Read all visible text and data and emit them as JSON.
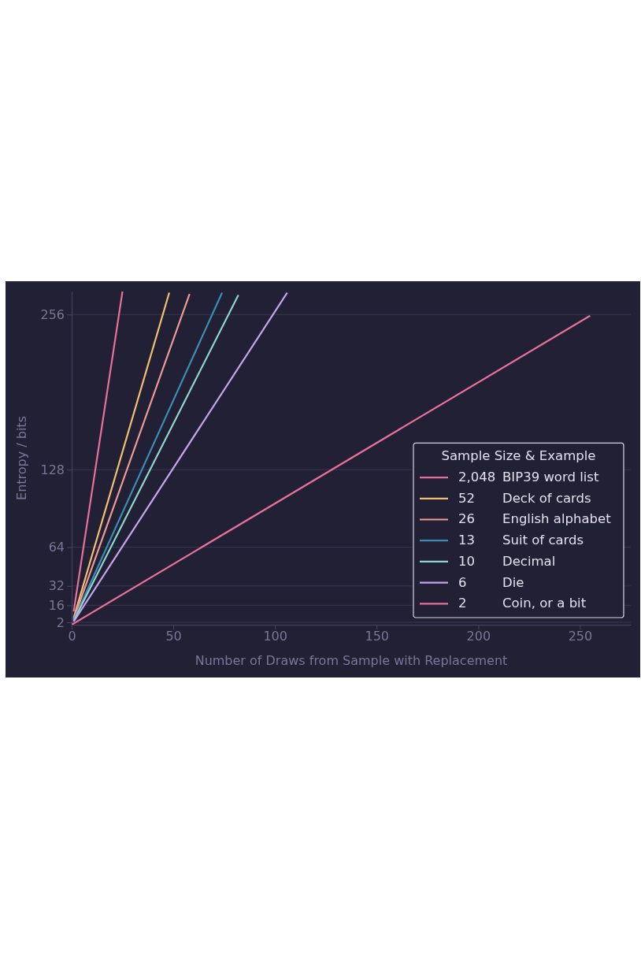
{
  "chart_data": {
    "type": "line",
    "xlabel": "Number of Draws from Sample with Replacement",
    "ylabel": "Entropy / bits",
    "legend_title": "Sample Size & Example",
    "xlim": [
      0,
      275
    ],
    "ylim": [
      0,
      275
    ],
    "xticks": [
      0,
      50,
      100,
      150,
      200,
      250
    ],
    "yticks": [
      2,
      16,
      32,
      64,
      128,
      256
    ],
    "grid": "y",
    "legend": "bottom right",
    "line_style": "solid",
    "marker": "none",
    "series": [
      {
        "name": "2,048 BIP39 word list",
        "color": "#e8719c",
        "x": [
          1,
          25
        ],
        "values": [
          11,
          275
        ]
      },
      {
        "name": "52 Deck of cards",
        "color": "#f4c06f",
        "x": [
          1,
          48
        ],
        "values": [
          5.7,
          274
        ]
      },
      {
        "name": "26 English alphabet",
        "color": "#ee9996",
        "x": [
          1,
          58
        ],
        "values": [
          4.7,
          273
        ]
      },
      {
        "name": "13 Suit of cards",
        "color": "#3a8db3",
        "x": [
          1,
          74
        ],
        "values": [
          3.7,
          274
        ]
      },
      {
        "name": "10 Decimal",
        "color": "#8fd4cd",
        "x": [
          1,
          82
        ],
        "values": [
          3.3,
          272
        ]
      },
      {
        "name": "6 Die",
        "color": "#c5a5ea",
        "x": [
          1,
          106
        ],
        "values": [
          2.6,
          274
        ]
      },
      {
        "name": "2 Coin, or a bit",
        "color": "#e8719c",
        "x": [
          0,
          255
        ],
        "values": [
          0,
          255
        ]
      }
    ]
  }
}
